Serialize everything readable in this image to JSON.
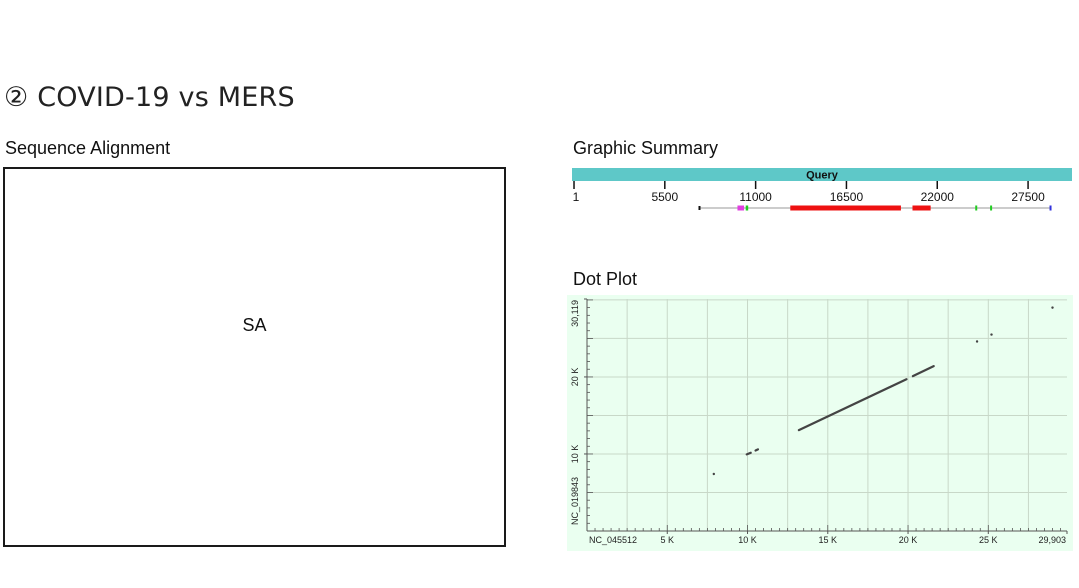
{
  "slide": {
    "heading": "② COVID-19 vs MERS"
  },
  "sequence_alignment": {
    "title": "Sequence Alignment",
    "placeholder_label": "SA"
  },
  "graphic_summary": {
    "title": "Graphic Summary",
    "query_label": "Query",
    "ticks": [
      {
        "value": 1,
        "label": "1"
      },
      {
        "value": 5500,
        "label": "5500"
      },
      {
        "value": 11000,
        "label": "11000"
      },
      {
        "value": 16500,
        "label": "16500"
      },
      {
        "value": 22000,
        "label": "22000"
      },
      {
        "value": 27500,
        "label": "27500"
      }
    ],
    "axis_max": 30100,
    "line_range": [
      7600,
      28900
    ],
    "hits": [
      {
        "start": 9900,
        "end": 10300,
        "color": "#e040e0"
      },
      {
        "start": 10400,
        "end": 10550,
        "color": "#22cc22"
      },
      {
        "start": 13100,
        "end": 19800,
        "color": "#ee1111"
      },
      {
        "start": 20500,
        "end": 21600,
        "color": "#ee1111"
      },
      {
        "start": 24300,
        "end": 24400,
        "color": "#22cc22"
      },
      {
        "start": 25200,
        "end": 25300,
        "color": "#22cc22"
      },
      {
        "start": 28800,
        "end": 28900,
        "color": "#3333dd"
      }
    ],
    "colors": {
      "query_bar": "#5ec8c8"
    }
  },
  "dot_plot": {
    "title": "Dot Plot",
    "x_label": "NC_045512",
    "y_label": "NC_019843",
    "x_max": 29903,
    "y_max": 30119,
    "x_ticks": [
      {
        "value": 5000,
        "label": "5 K"
      },
      {
        "value": 10000,
        "label": "10 K"
      },
      {
        "value": 15000,
        "label": "15 K"
      },
      {
        "value": 20000,
        "label": "20 K"
      },
      {
        "value": 25000,
        "label": "25 K"
      },
      {
        "value": 29903,
        "label": "29,903"
      }
    ],
    "y_ticks": [
      {
        "value": 10000,
        "label": "10 K"
      },
      {
        "value": 20000,
        "label": "20 K"
      },
      {
        "value": 30119,
        "label": "30,119"
      }
    ],
    "segments": [
      {
        "x1": 13200,
        "y1": 13100,
        "x2": 19900,
        "y2": 19700
      },
      {
        "x1": 20300,
        "y1": 20100,
        "x2": 21600,
        "y2": 21400
      },
      {
        "x1": 9950,
        "y1": 9950,
        "x2": 10200,
        "y2": 10150
      },
      {
        "x1": 10500,
        "y1": 10450,
        "x2": 10650,
        "y2": 10600
      }
    ],
    "dots": [
      {
        "x": 7900,
        "y": 7400
      },
      {
        "x": 24300,
        "y": 24600
      },
      {
        "x": 25200,
        "y": 25500
      },
      {
        "x": 29000,
        "y": 29000
      }
    ],
    "colors": {
      "background": "#eafff0",
      "grid": "#c8d8c8",
      "segment": "#444444"
    }
  }
}
